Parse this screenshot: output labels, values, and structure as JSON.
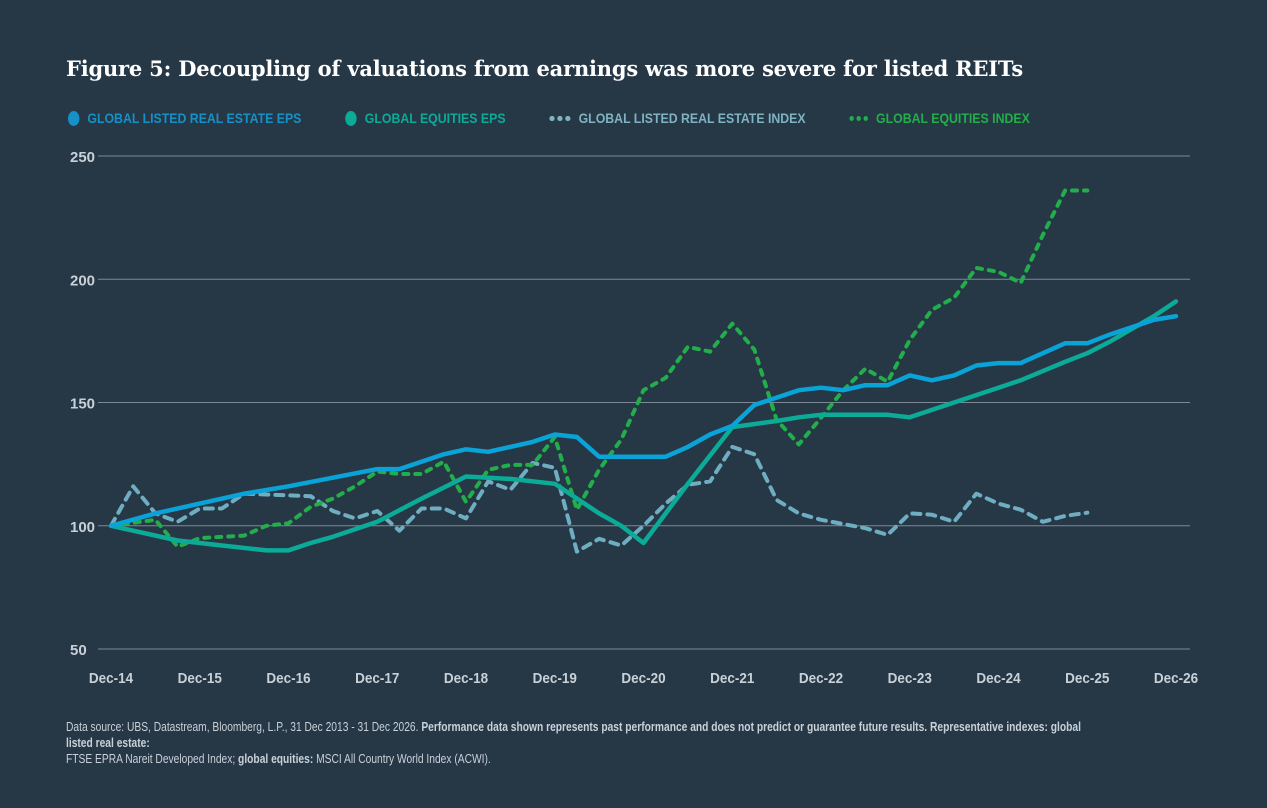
{
  "title": "Figure 5: Decoupling of valuations from earnings was more severe for listed REITs",
  "chart_data": {
    "type": "line",
    "title": "Figure 5: Decoupling of valuations from earnings was more severe for listed REITs",
    "xlabel": "",
    "ylabel": "",
    "ylim": [
      50,
      250
    ],
    "yticks": [
      250,
      200,
      150,
      100,
      50
    ],
    "xlim": [
      "2014-12",
      "2026-12"
    ],
    "xtick_labels": [
      "Dec-14",
      "Dec-15",
      "Dec-16",
      "Dec-17",
      "Dec-18",
      "Dec-19",
      "Dec-20",
      "Dec-21",
      "Dec-22",
      "Dec-23",
      "Dec-24",
      "Dec-25",
      "Dec-26"
    ],
    "grid": "horizontal",
    "legend_position": "top",
    "series": [
      {
        "name": "GLOBAL LISTED REAL ESTATE EPS",
        "style": "solid",
        "color": "#0aa3d8",
        "legend_color": "#1591c8",
        "x": [
          "2014-12",
          "2015-06",
          "2015-12",
          "2016-06",
          "2016-12",
          "2017-06",
          "2017-12",
          "2018-03",
          "2018-09",
          "2018-12",
          "2019-03",
          "2019-09",
          "2019-12",
          "2020-03",
          "2020-06",
          "2021-03",
          "2021-06",
          "2021-09",
          "2021-12",
          "2022-03",
          "2022-09",
          "2022-12",
          "2023-03",
          "2023-06",
          "2023-09",
          "2023-12",
          "2024-03",
          "2024-06",
          "2024-09",
          "2024-12",
          "2025-03",
          "2025-09",
          "2025-12",
          "2026-03",
          "2026-09",
          "2026-12"
        ],
        "y": [
          100,
          105,
          109,
          113,
          116,
          119.5,
          123,
          123,
          129,
          131,
          130,
          134,
          137,
          136,
          128,
          128,
          132,
          137,
          140.5,
          149,
          155,
          156,
          155,
          157,
          157,
          161,
          159,
          161,
          165,
          166,
          166,
          174,
          174,
          177.5,
          183.5,
          185
        ]
      },
      {
        "name": "GLOBAL EQUITIES EPS",
        "style": "solid",
        "color": "#0bab98",
        "legend_color": "#0bab98",
        "x": [
          "2014-12",
          "2015-09",
          "2016-03",
          "2016-09",
          "2016-12",
          "2017-03",
          "2017-06",
          "2017-12",
          "2018-06",
          "2018-12",
          "2019-06",
          "2019-12",
          "2020-06",
          "2020-09",
          "2020-12",
          "2021-06",
          "2021-12",
          "2022-06",
          "2022-09",
          "2022-12",
          "2023-09",
          "2023-12",
          "2024-06",
          "2024-12",
          "2025-03",
          "2025-09",
          "2025-12",
          "2026-03",
          "2026-09",
          "2026-12"
        ],
        "y": [
          100,
          94,
          92,
          90,
          90,
          93,
          95.5,
          101.6,
          111,
          120,
          119,
          117,
          105,
          100,
          93,
          117,
          140,
          142.5,
          144,
          145,
          145,
          144,
          150,
          156,
          159,
          166.5,
          170,
          174.6,
          185,
          191
        ]
      },
      {
        "name": "GLOBAL LISTED REAL ESTATE INDEX",
        "style": "dashed",
        "color": "#6eaec0",
        "legend_color": "#7fb3c2",
        "x": [
          "2014-12",
          "2015-03",
          "2015-06",
          "2015-09",
          "2015-12",
          "2016-03",
          "2016-06",
          "2017-03",
          "2017-06",
          "2017-09",
          "2017-12",
          "2018-03",
          "2018-06",
          "2018-09",
          "2018-12",
          "2019-03",
          "2019-06",
          "2019-09",
          "2019-12",
          "2020-03",
          "2020-06",
          "2020-09",
          "2020-12",
          "2021-03",
          "2021-06",
          "2021-09",
          "2021-12",
          "2022-03",
          "2022-06",
          "2022-09",
          "2022-12",
          "2023-06",
          "2023-09",
          "2023-12",
          "2024-03",
          "2024-06",
          "2024-09",
          "2024-12",
          "2025-03",
          "2025-06",
          "2025-09",
          "2025-12"
        ],
        "y": [
          100,
          116,
          105,
          101.6,
          107,
          107,
          113,
          112,
          106,
          103,
          106,
          98,
          107,
          107,
          103,
          118,
          114.6,
          125.5,
          123.5,
          89.5,
          94.7,
          92,
          100,
          109,
          116.6,
          118,
          132,
          129,
          110.5,
          105,
          102.4,
          99,
          96.3,
          105,
          104.5,
          101.6,
          113,
          109,
          106.5,
          101.6,
          104,
          105.3
        ]
      },
      {
        "name": "GLOBAL EQUITIES INDEX",
        "style": "dotted",
        "color": "#22ae4a",
        "legend_color": "#22ae4a",
        "x": [
          "2014-12",
          "2015-06",
          "2015-09",
          "2015-12",
          "2016-06",
          "2016-09",
          "2016-12",
          "2017-03",
          "2017-06",
          "2017-09",
          "2017-12",
          "2018-03",
          "2018-06",
          "2018-09",
          "2018-12",
          "2019-03",
          "2019-06",
          "2019-09",
          "2019-12",
          "2020-03",
          "2020-06",
          "2020-09",
          "2020-12",
          "2021-03",
          "2021-06",
          "2021-09",
          "2021-12",
          "2022-03",
          "2022-06",
          "2022-09",
          "2022-12",
          "2023-03",
          "2023-06",
          "2023-09",
          "2023-12",
          "2024-03",
          "2024-06",
          "2024-09",
          "2024-12",
          "2025-03",
          "2025-06",
          "2025-09",
          "2025-12"
        ],
        "y": [
          100,
          102.4,
          91.5,
          95,
          96,
          100,
          101,
          107.7,
          111,
          116,
          122,
          121,
          121,
          126,
          109.7,
          122.7,
          124.7,
          124.7,
          136,
          106.5,
          122.7,
          135,
          155,
          160,
          172.6,
          170.6,
          182,
          171.4,
          143,
          133,
          143.8,
          155,
          163.7,
          158.4,
          175.4,
          187.6,
          192.5,
          204.6,
          203,
          198.5,
          218,
          236,
          236
        ]
      }
    ]
  },
  "footnote": {
    "part1": "Data source: UBS, Datastream, Bloomberg, L.P., 31 Dec 2013 - 31 Dec 2026. ",
    "part2": "Performance data shown represents past performance and does not predict or guarantee future results. Representative indexes: global listed real estate:",
    "part3": " FTSE EPRA Nareit Developed Index; ",
    "part4": "global equities:",
    "part5": " MSCI All Country World Index (ACWI)."
  },
  "background": "#263746"
}
